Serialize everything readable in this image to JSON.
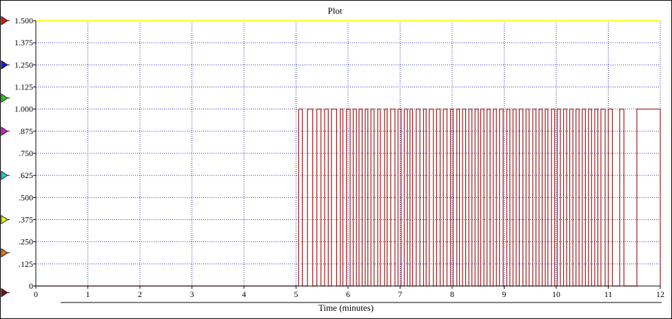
{
  "window": {
    "title": "Plot"
  },
  "chart_data": {
    "type": "line",
    "title": "Plot",
    "xlabel": "Time (minutes)",
    "ylabel": "",
    "xlim": [
      0,
      12
    ],
    "ylim": [
      0,
      1.5
    ],
    "grid": true,
    "x_ticks": [
      0,
      1,
      2,
      3,
      4,
      5,
      6,
      7,
      8,
      9,
      10,
      11,
      12
    ],
    "x_tick_labels": [
      "0",
      "1",
      "2",
      "3",
      "4",
      "5",
      "6",
      "7",
      "8",
      "9",
      "10",
      "11",
      "12"
    ],
    "y_ticks": [
      0,
      0.125,
      0.25,
      0.375,
      0.5,
      0.625,
      0.75,
      0.875,
      1.0,
      1.125,
      1.25,
      1.375,
      1.5
    ],
    "y_tick_labels": [
      "0",
      ".125",
      ".250",
      ".375",
      ".500",
      ".625",
      ".750",
      ".875",
      "1.000",
      "1.125",
      "1.250",
      "1.375",
      "1.500"
    ],
    "colors": {
      "series": "#a01818",
      "upper_line": "#ffff00",
      "grid": "#2222cc"
    },
    "channel_markers": [
      {
        "color": "#dd1a1a",
        "value": 1.5
      },
      {
        "color": "#1a1acc",
        "value": 1.25
      },
      {
        "color": "#22cc22",
        "value": 1.0625
      },
      {
        "color": "#cc22cc",
        "value": 0.875
      },
      {
        "color": "#22cccc",
        "value": 0.625
      },
      {
        "color": "#eeee22",
        "value": 0.375
      },
      {
        "color": "#dd7a1a",
        "value": 0.1875
      },
      {
        "color": "#7a1010",
        "value": -0.0375
      }
    ],
    "series": [
      {
        "values_description": "pulse train: 0 until ~5.05 min, then rapid 0/1 switching",
        "pulses": [
          [
            5.05,
            5.12
          ],
          [
            5.22,
            5.32
          ],
          [
            5.4,
            5.48
          ],
          [
            5.55,
            5.62
          ],
          [
            5.68,
            5.78
          ],
          [
            5.85,
            5.9
          ],
          [
            5.97,
            6.04
          ],
          [
            6.1,
            6.16
          ],
          [
            6.21,
            6.27
          ],
          [
            6.33,
            6.38
          ],
          [
            6.44,
            6.5
          ],
          [
            6.57,
            6.62
          ],
          [
            6.7,
            6.75
          ],
          [
            6.82,
            6.9
          ],
          [
            6.96,
            7.02
          ],
          [
            7.08,
            7.14
          ],
          [
            7.19,
            7.24
          ],
          [
            7.31,
            7.38
          ],
          [
            7.45,
            7.5
          ],
          [
            7.56,
            7.64
          ],
          [
            7.7,
            7.77
          ],
          [
            7.83,
            7.9
          ],
          [
            7.97,
            8.02
          ],
          [
            8.09,
            8.14
          ],
          [
            8.2,
            8.26
          ],
          [
            8.32,
            8.38
          ],
          [
            8.44,
            8.5
          ],
          [
            8.55,
            8.61
          ],
          [
            8.67,
            8.73
          ],
          [
            8.79,
            8.85
          ],
          [
            8.91,
            8.98
          ],
          [
            9.05,
            9.11
          ],
          [
            9.17,
            9.23
          ],
          [
            9.29,
            9.36
          ],
          [
            9.42,
            9.48
          ],
          [
            9.55,
            9.61
          ],
          [
            9.67,
            9.73
          ],
          [
            9.79,
            9.84
          ],
          [
            9.91,
            9.97
          ],
          [
            10.02,
            10.08
          ],
          [
            10.14,
            10.2
          ],
          [
            10.26,
            10.32
          ],
          [
            10.38,
            10.44
          ],
          [
            10.5,
            10.56
          ],
          [
            10.62,
            10.68
          ],
          [
            10.74,
            10.8
          ],
          [
            10.86,
            10.94
          ],
          [
            11.0,
            11.08
          ],
          [
            11.22,
            11.3
          ],
          [
            11.55,
            12.0
          ]
        ]
      }
    ]
  }
}
